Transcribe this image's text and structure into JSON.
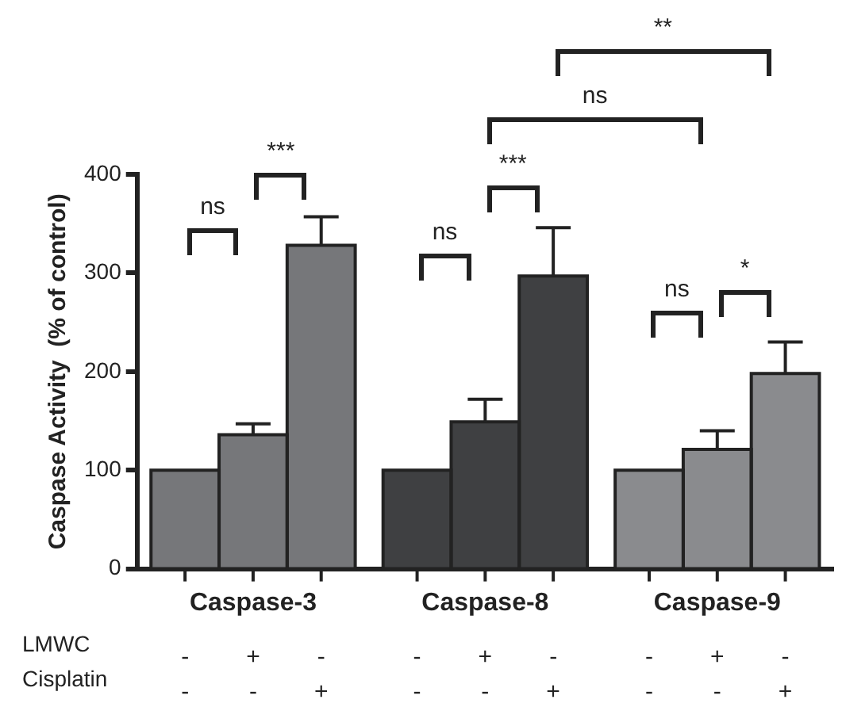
{
  "chart_data": {
    "type": "bar",
    "ylabel": "Caspase Activity  (% of control)",
    "categories": [
      "Caspase-3",
      "Caspase-8",
      "Caspase-9"
    ],
    "series": [
      {
        "colors": [
          "#76777a",
          "#3f4042",
          "#8a8b8e"
        ],
        "values": [
          100,
          100,
          100
        ]
      },
      {
        "colors": [
          "#76777a",
          "#3f4042",
          "#8a8b8e"
        ],
        "values": [
          136,
          149,
          121
        ],
        "errors": [
          [
            136,
            147
          ],
          [
            149,
            172
          ],
          [
            121,
            140
          ]
        ]
      },
      {
        "colors": [
          "#76777a",
          "#3f4042",
          "#8a8b8e"
        ],
        "values": [
          328,
          297,
          198
        ],
        "errors": [
          [
            328,
            357
          ],
          [
            297,
            346
          ],
          [
            198,
            230
          ]
        ]
      }
    ],
    "ylim": [
      0,
      400
    ],
    "yticks": [
      0,
      100,
      200,
      300,
      400
    ],
    "grid": false,
    "legend": false,
    "annotations": [
      "ns",
      "***",
      "ns",
      "***",
      "ns",
      "*",
      "ns",
      "**",
      "LMWC",
      "-",
      "+",
      "-",
      "-",
      "+",
      "-",
      "-",
      "+",
      "-",
      "Cisplatin",
      "-",
      "-",
      "+",
      "-",
      "-",
      "+",
      "-",
      "-",
      "+"
    ]
  }
}
